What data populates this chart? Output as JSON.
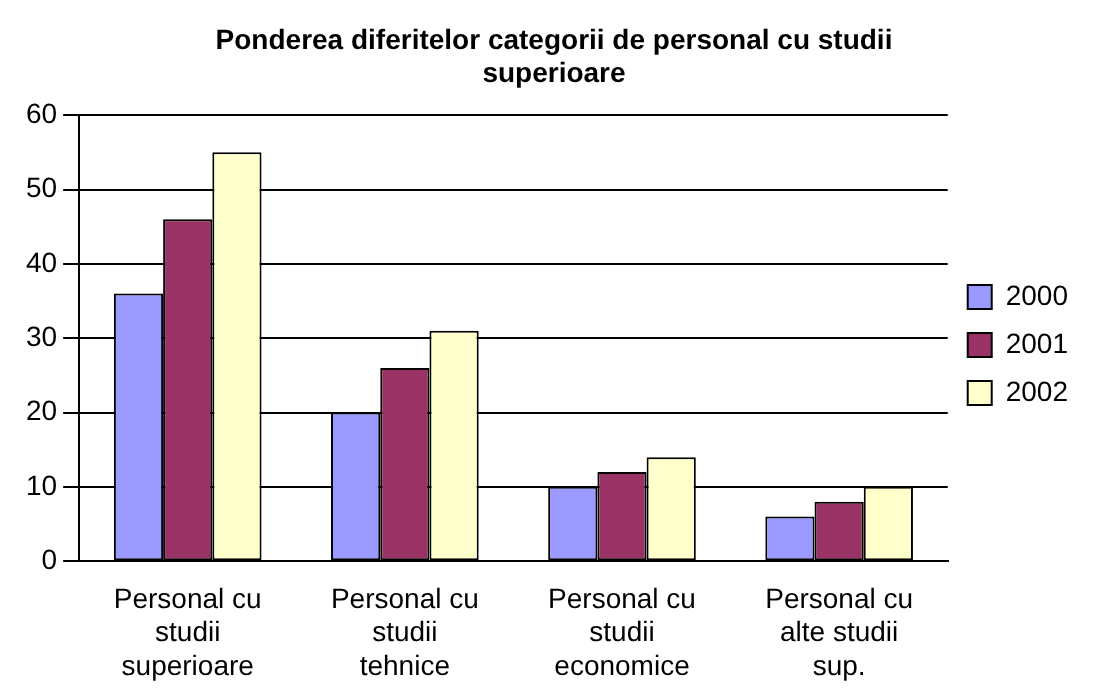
{
  "chart_data": {
    "type": "bar",
    "title": "Ponderea diferitelor categorii de personal cu studii superioare",
    "categories": [
      "Personal cu studii superioare",
      "Personal cu studii tehnice",
      "Personal cu studii economice",
      "Personal cu alte studii sup."
    ],
    "series": [
      {
        "name": "2000",
        "color": "#9999ff",
        "values": [
          36,
          20,
          10,
          6
        ]
      },
      {
        "name": "2001",
        "color": "#993366",
        "values": [
          46,
          26,
          12,
          8
        ]
      },
      {
        "name": "2002",
        "color": "#ffffcc",
        "values": [
          55,
          31,
          14,
          10
        ]
      }
    ],
    "ylim": [
      0,
      60
    ],
    "yticks": [
      0,
      10,
      20,
      30,
      40,
      50,
      60
    ],
    "grid": "y",
    "legend": "right"
  }
}
